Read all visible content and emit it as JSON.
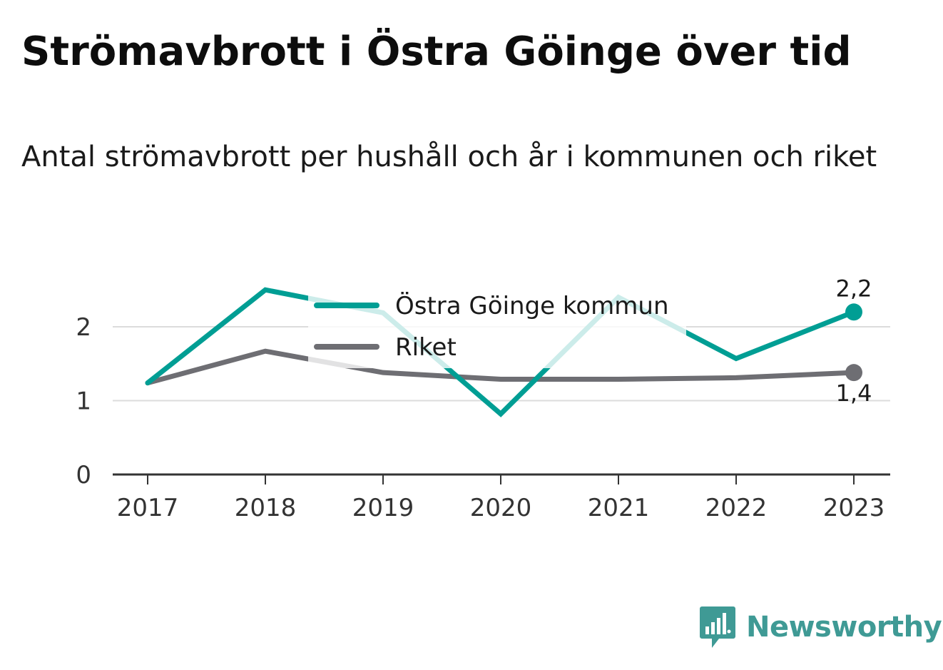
{
  "header": {
    "title": "Strömavbrott i Östra Göinge över tid",
    "subtitle": "Antal strömavbrott per hushåll och år i kommunen och riket"
  },
  "brand": {
    "name": "Newsworthy",
    "icon": "bar-chart-speech-bubble-icon",
    "color": "#3f9a95"
  },
  "chart_data": {
    "type": "line",
    "title": "",
    "xlabel": "",
    "ylabel": "",
    "categories": [
      "2017",
      "2018",
      "2019",
      "2020",
      "2021",
      "2022",
      "2023"
    ],
    "ylim": [
      0,
      2.5
    ],
    "yticks": [
      0,
      1,
      2
    ],
    "grid": true,
    "legend_position": "top-center",
    "series": [
      {
        "name": "Östra Göinge kommun",
        "color": "#009e94",
        "values": [
          1.24,
          2.5,
          2.19,
          0.82,
          2.4,
          1.57,
          2.2
        ],
        "end_label": "2,2"
      },
      {
        "name": "Riket",
        "color": "#6e6e73",
        "values": [
          1.24,
          1.67,
          1.38,
          1.29,
          1.29,
          1.31,
          1.38
        ],
        "end_label": "1,4"
      }
    ]
  }
}
